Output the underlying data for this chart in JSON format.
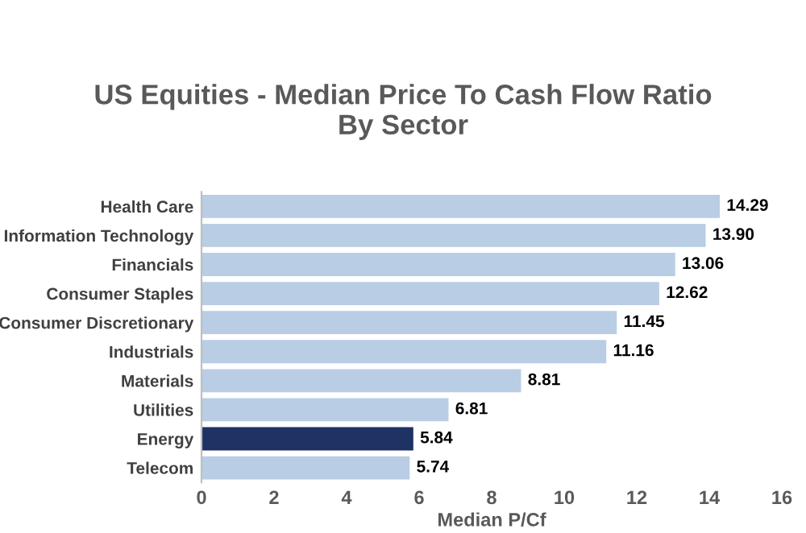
{
  "chart_data": {
    "type": "bar",
    "orientation": "horizontal",
    "title": "US Equities - Median Price To Cash Flow Ratio\nBy Sector",
    "xlabel": "Median P/Cf",
    "categories": [
      "Health Care",
      "Information Technology",
      "Financials",
      "Consumer Staples",
      "Consumer Discretionary",
      "Industrials",
      "Materials",
      "Utilities",
      "Energy",
      "Telecom"
    ],
    "values": [
      14.29,
      13.9,
      13.06,
      12.62,
      11.45,
      11.16,
      8.81,
      6.81,
      5.84,
      5.74
    ],
    "value_labels": [
      "14.29",
      "13.90",
      "13.06",
      "12.62",
      "11.45",
      "11.16",
      "8.81",
      "6.81",
      "5.84",
      "5.74"
    ],
    "colors": [
      "#b9cde5",
      "#b9cde5",
      "#b9cde5",
      "#b9cde5",
      "#b9cde5",
      "#b9cde5",
      "#b9cde5",
      "#b9cde5",
      "#1f3264",
      "#b9cde5"
    ],
    "xlim": [
      0,
      16
    ],
    "xticks": [
      0,
      2,
      4,
      6,
      8,
      10,
      12,
      14,
      16
    ],
    "grid": false,
    "legend": false
  }
}
